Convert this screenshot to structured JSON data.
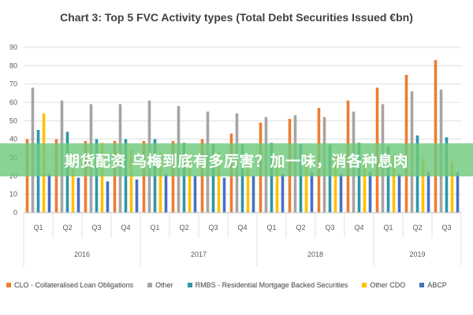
{
  "overlay_text": "期货配资 乌梅到底有多厉害？加一味，消各种息肉",
  "chart_data": {
    "type": "bar",
    "title": "Chart 3: Top 5 FVC Activity types (Total Debt Securities Issued €bn)",
    "xlabel": "",
    "ylabel": "",
    "ylim": [
      0,
      90
    ],
    "yticks": [
      0,
      10,
      20,
      30,
      40,
      50,
      60,
      70,
      80,
      90
    ],
    "grid": true,
    "legend_position": "bottom",
    "categories": [
      "Q1",
      "Q2",
      "Q3",
      "Q4",
      "Q1",
      "Q2",
      "Q3",
      "Q4",
      "Q1",
      "Q2",
      "Q3",
      "Q4",
      "Q1",
      "Q2",
      "Q3"
    ],
    "groups": [
      {
        "label": "2016",
        "count": 4
      },
      {
        "label": "2017",
        "count": 4
      },
      {
        "label": "2018",
        "count": 4
      },
      {
        "label": "2019",
        "count": 3
      }
    ],
    "series": [
      {
        "name": "CLO - Collateralised Loan Obligations",
        "color": "#ed7d31",
        "values": [
          40,
          40,
          39,
          39,
          39,
          39,
          40,
          43,
          49,
          51,
          57,
          61,
          68,
          75,
          83
        ]
      },
      {
        "name": "Other",
        "color": "#a5a5a5",
        "values": [
          68,
          61,
          59,
          59,
          61,
          58,
          55,
          54,
          52,
          53,
          52,
          55,
          59,
          66,
          67
        ]
      },
      {
        "name": "RMBS - Residential Mortgage Backed Securities",
        "color": "#2e96a8",
        "values": [
          45,
          44,
          40,
          40,
          40,
          38,
          37,
          37,
          38,
          37,
          37,
          38,
          36,
          42,
          41
        ]
      },
      {
        "name": "Other CDO",
        "color": "#ffc000",
        "values": [
          54,
          32,
          38,
          34,
          33,
          32,
          33,
          32,
          29,
          32,
          31,
          31,
          31,
          29,
          28
        ]
      },
      {
        "name": "ABCP",
        "color": "#4472c4",
        "values": [
          21,
          19,
          17,
          18,
          21,
          20,
          19,
          20,
          21,
          22,
          21,
          22,
          21,
          22,
          22
        ]
      }
    ]
  }
}
